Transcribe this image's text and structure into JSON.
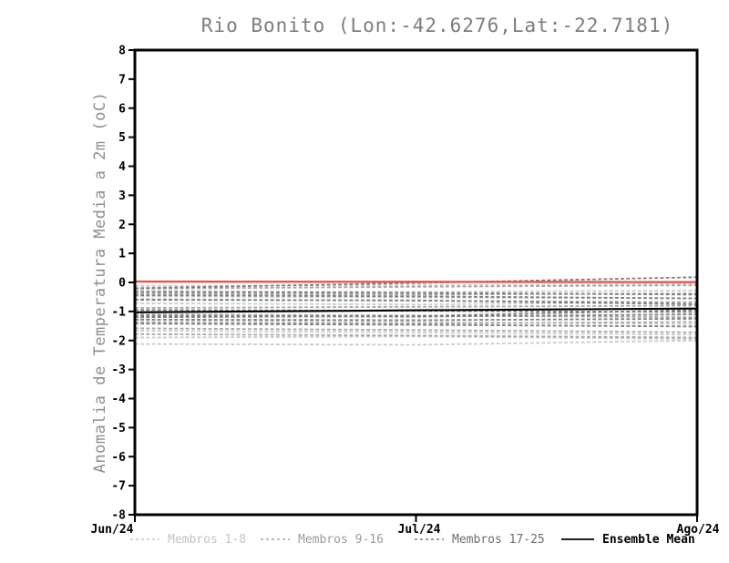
{
  "chart_data": {
    "type": "line",
    "title": "Rio Bonito (Lon:-42.6276,Lat:-22.7181)",
    "ylabel": "Anomalia de Temperatura Media a 2m (oC)",
    "xlabel": "",
    "categories": [
      "Jun/24",
      "Jul/24",
      "Ago/24"
    ],
    "y_ticks": [
      8,
      7,
      6,
      5,
      4,
      3,
      2,
      1,
      0,
      -1,
      -2,
      -3,
      -4,
      -5,
      -6,
      -7,
      -8
    ],
    "ylim": [
      -8,
      8
    ],
    "grid": false,
    "legend_position": "bottom",
    "axis_color": "#000000",
    "series_groups": [
      {
        "name": "Membros 1-8",
        "line_color": "#c9c9c9",
        "label_color": "#c3c3c3",
        "line_style": "dashed",
        "members": [
          [
            -0.12,
            -0.1,
            -0.06
          ],
          [
            -0.3,
            -0.33,
            -0.28
          ],
          [
            -0.48,
            -0.52,
            -0.55
          ],
          [
            -0.72,
            -0.76,
            -0.68
          ],
          [
            -1.3,
            -1.36,
            -1.44
          ],
          [
            -1.66,
            -1.72,
            -1.8
          ],
          [
            -1.9,
            -1.86,
            -1.95
          ],
          [
            -2.12,
            -2.15,
            -2.0
          ]
        ]
      },
      {
        "name": "Membros 9-16",
        "line_color": "#a5a5a5",
        "label_color": "#9b9b9b",
        "line_style": "dashed",
        "members": [
          [
            -0.22,
            -0.15,
            -0.1
          ],
          [
            -0.38,
            -0.42,
            -0.38
          ],
          [
            -0.58,
            -0.63,
            -0.68
          ],
          [
            -0.88,
            -0.84,
            -0.8
          ],
          [
            -1.1,
            -1.14,
            -1.2
          ],
          [
            -1.38,
            -1.42,
            -1.36
          ],
          [
            -1.58,
            -1.64,
            -1.72
          ],
          [
            -1.78,
            -1.83,
            -1.9
          ]
        ]
      },
      {
        "name": "Membros 17-25",
        "line_color": "#7c7c7c",
        "label_color": "#6f6f6f",
        "line_style": "dashed",
        "members": [
          [
            -0.2,
            -0.02,
            0.18
          ],
          [
            -0.32,
            -0.36,
            -0.42
          ],
          [
            -0.44,
            -0.48,
            -0.55
          ],
          [
            -0.6,
            -0.62,
            -0.75
          ],
          [
            -0.95,
            -0.98,
            -1.02
          ],
          [
            -1.15,
            -1.18,
            -1.1
          ],
          [
            -1.28,
            -1.3,
            -1.25
          ],
          [
            -1.42,
            -1.46,
            -1.52
          ],
          [
            -1.2,
            -1.16,
            -0.95
          ]
        ]
      }
    ],
    "ensemble_mean": {
      "name": "Ensemble Mean",
      "line_color": "#000000",
      "label_color": "#000000",
      "line_style": "solid",
      "values": [
        -1.03,
        -0.96,
        -0.9
      ]
    },
    "reference_line": {
      "name": "zero-anomaly-reference",
      "line_color": "#e9534f",
      "line_style": "solid",
      "values": [
        0.03,
        0.02,
        0.01
      ]
    }
  }
}
